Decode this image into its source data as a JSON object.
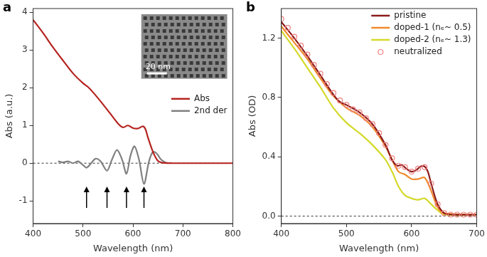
{
  "chart_data": [
    {
      "type": "line",
      "title": "a",
      "x_label": "Wavelength (nm)",
      "y_label": "Abs (a.u.)",
      "xlim": [
        400,
        800
      ],
      "xticks": [
        400,
        500,
        600,
        700,
        800
      ],
      "ylim": [
        -1.6,
        4.1
      ],
      "yticks": [
        -1,
        0,
        1,
        2,
        3,
        4
      ],
      "grid": false,
      "legend": "right",
      "annotations": [
        "20 nm"
      ],
      "arrows": [
        507,
        548,
        587,
        622
      ],
      "series": [
        {
          "name": "Abs",
          "color": "#b5231f",
          "x": [
            400,
            420,
            440,
            460,
            480,
            500,
            510,
            520,
            540,
            560,
            570,
            580,
            590,
            600,
            610,
            620,
            625,
            630,
            640,
            650,
            660,
            680,
            700,
            750,
            800
          ],
          "values": [
            3.8,
            3.45,
            3.07,
            2.72,
            2.38,
            2.12,
            2.02,
            1.88,
            1.56,
            1.22,
            1.05,
            0.95,
            1.0,
            0.93,
            0.92,
            0.98,
            0.9,
            0.68,
            0.3,
            0.06,
            0.01,
            0,
            0,
            0,
            0
          ]
        },
        {
          "name": "2nd der",
          "color": "#808080",
          "x": [
            450,
            460,
            470,
            480,
            490,
            500,
            507,
            515,
            525,
            535,
            548,
            558,
            568,
            578,
            587,
            595,
            603,
            612,
            622,
            632,
            640,
            648,
            656,
            665,
            670
          ],
          "values": [
            0.05,
            0.02,
            0.05,
            0,
            0.05,
            -0.05,
            -0.12,
            -0.02,
            0.12,
            0.05,
            -0.2,
            0.1,
            0.35,
            0.1,
            -0.28,
            0.2,
            0.45,
            0.1,
            -0.55,
            0.05,
            0.3,
            0.25,
            0.1,
            0.02,
            0
          ]
        }
      ]
    },
    {
      "type": "line",
      "title": "b",
      "x_label": "Wavelength (nm)",
      "y_label": "Abs (OD)",
      "xlim": [
        400,
        700
      ],
      "xticks": [
        400,
        500,
        600,
        700
      ],
      "ylim": [
        -0.05,
        1.4
      ],
      "yticks": [
        {
          "value": 0,
          "label": "0.0"
        },
        {
          "value": 0.4,
          "label": "0.4"
        },
        {
          "value": 0.8,
          "label": "0.8"
        },
        {
          "value": 1.2,
          "label": "1.2"
        }
      ],
      "grid": false,
      "legend": "upper right",
      "series": [
        {
          "name": "pristine",
          "color": "#8b1a1a",
          "type": "line",
          "line_style": "solid",
          "x": [
            400,
            420,
            440,
            460,
            480,
            490,
            500,
            520,
            540,
            560,
            570,
            578,
            585,
            592,
            600,
            607,
            614,
            620,
            625,
            630,
            640,
            650,
            660,
            700
          ],
          "values": [
            1.31,
            1.2,
            1.08,
            0.95,
            0.82,
            0.77,
            0.75,
            0.7,
            0.62,
            0.48,
            0.38,
            0.34,
            0.345,
            0.32,
            0.3,
            0.31,
            0.335,
            0.335,
            0.3,
            0.22,
            0.08,
            0.02,
            0.01,
            0.01
          ]
        },
        {
          "name": "doped-1 (nₑ~ 0.5)",
          "color": "#f08a2c",
          "type": "line",
          "line_style": "solid",
          "x": [
            400,
            420,
            440,
            460,
            480,
            500,
            520,
            540,
            560,
            570,
            580,
            590,
            600,
            610,
            620,
            630,
            640,
            650,
            700
          ],
          "values": [
            1.28,
            1.17,
            1.06,
            0.93,
            0.81,
            0.73,
            0.68,
            0.6,
            0.47,
            0.38,
            0.3,
            0.28,
            0.25,
            0.25,
            0.26,
            0.17,
            0.06,
            0.02,
            0.01
          ]
        },
        {
          "name": "doped-2 (nₑ~ 1.3)",
          "color": "#d4d92a",
          "type": "line",
          "line_style": "solid",
          "x": [
            400,
            420,
            440,
            460,
            480,
            500,
            520,
            540,
            560,
            570,
            580,
            590,
            600,
            610,
            620,
            630,
            640,
            650,
            700
          ],
          "values": [
            1.25,
            1.13,
            1.0,
            0.87,
            0.73,
            0.63,
            0.56,
            0.48,
            0.38,
            0.3,
            0.2,
            0.14,
            0.12,
            0.11,
            0.12,
            0.08,
            0.04,
            0.01,
            0.01
          ]
        },
        {
          "name": "neutralized",
          "color": "#f08080",
          "type": "scatter",
          "marker": "open circle",
          "x": [
            400,
            410,
            420,
            430,
            440,
            450,
            460,
            470,
            480,
            490,
            500,
            510,
            520,
            530,
            540,
            550,
            560,
            570,
            580,
            590,
            600,
            610,
            620,
            630,
            640,
            650,
            660,
            670,
            680,
            690,
            700
          ],
          "values": [
            1.33,
            1.27,
            1.21,
            1.15,
            1.09,
            1.02,
            0.96,
            0.89,
            0.83,
            0.78,
            0.75,
            0.72,
            0.7,
            0.66,
            0.62,
            0.56,
            0.48,
            0.39,
            0.34,
            0.33,
            0.3,
            0.32,
            0.33,
            0.22,
            0.08,
            0.02,
            0.01,
            0.01,
            0.01,
            0.01,
            0.01
          ]
        }
      ]
    }
  ]
}
